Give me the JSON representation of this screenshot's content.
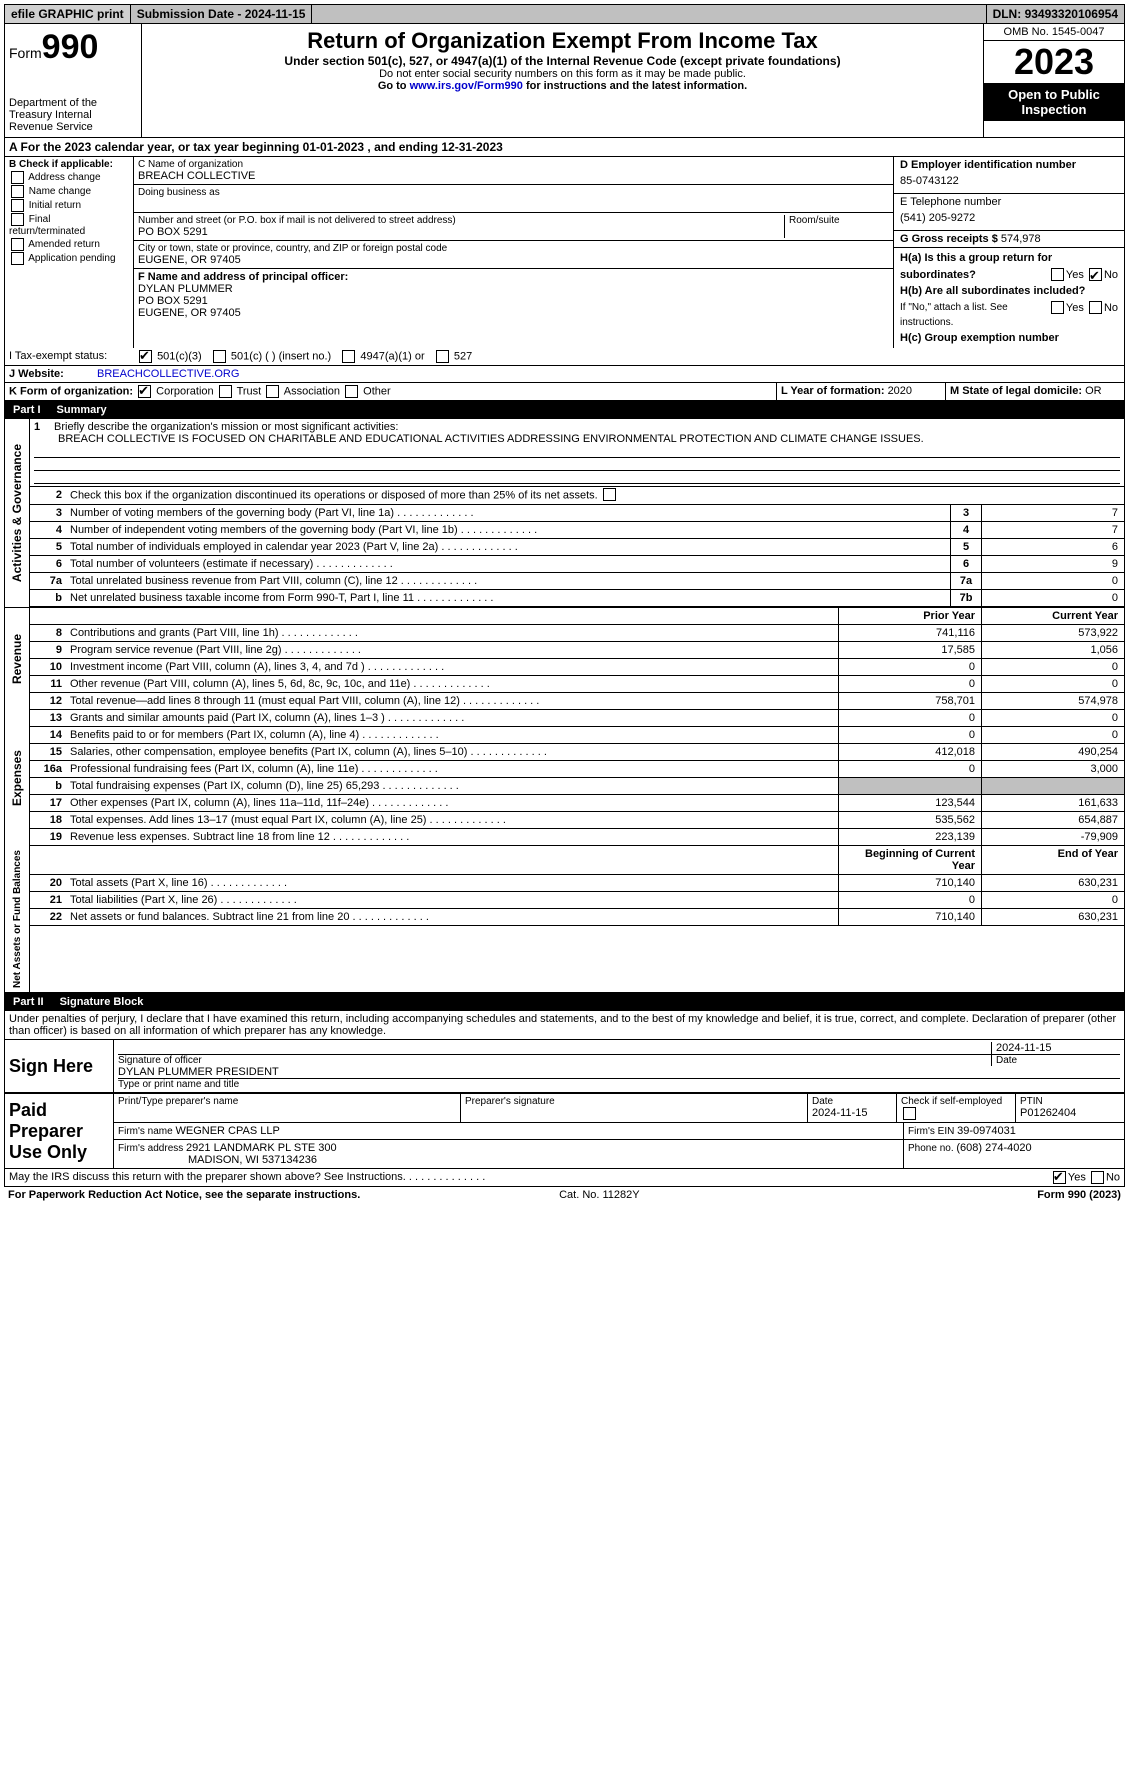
{
  "topbar": {
    "efile": "efile GRAPHIC print",
    "subdate_label": "Submission Date - ",
    "subdate": "2024-11-15",
    "dln_label": "DLN: ",
    "dln": "93493320106954"
  },
  "header": {
    "form_label": "Form",
    "form_num": "990",
    "dept": "Department of the Treasury\nInternal Revenue Service",
    "title": "Return of Organization Exempt From Income Tax",
    "sub": "Under section 501(c), 527, or 4947(a)(1) of the Internal Revenue Code (except private foundations)",
    "ssn": "Do not enter social security numbers on this form as it may be made public.",
    "goto_pre": "Go to ",
    "goto_link": "www.irs.gov/Form990",
    "goto_post": " for instructions and the latest information.",
    "omb": "OMB No. 1545-0047",
    "year": "2023",
    "opi": "Open to Public Inspection"
  },
  "lineA": {
    "pre": "A For the 2023 calendar year, or tax year beginning ",
    "begin": "01-01-2023",
    "mid": " , and ending ",
    "end": "12-31-2023"
  },
  "boxB": {
    "label": "B Check if applicable:",
    "items": [
      "Address change",
      "Name change",
      "Initial return",
      "Final return/terminated",
      "Amended return",
      "Application pending"
    ]
  },
  "boxC": {
    "name_label": "C Name of organization",
    "name": "BREACH COLLECTIVE",
    "dba_label": "Doing business as",
    "street_label": "Number and street (or P.O. box if mail is not delivered to street address)",
    "room_label": "Room/suite",
    "street": "PO BOX 5291",
    "city_label": "City or town, state or province, country, and ZIP or foreign postal code",
    "city": "EUGENE, OR  97405"
  },
  "boxD": {
    "label": "D Employer identification number",
    "val": "85-0743122"
  },
  "boxE": {
    "label": "E Telephone number",
    "val": "(541) 205-9272"
  },
  "boxG": {
    "label": "G Gross receipts $ ",
    "val": "574,978"
  },
  "boxF": {
    "label": "F  Name and address of principal officer:",
    "name": "DYLAN PLUMMER",
    "street": "PO BOX 5291",
    "city": "EUGENE, OR  97405"
  },
  "boxH": {
    "a": "H(a)  Is this a group return for subordinates?",
    "b": "H(b)  Are all subordinates included?",
    "b_note": "If \"No,\" attach a list. See instructions.",
    "c": "H(c)  Group exemption number "
  },
  "rowI": {
    "label": "I  Tax-exempt status:",
    "o1": "501(c)(3)",
    "o2": "501(c) (  ) (insert no.)",
    "o3": "4947(a)(1) or",
    "o4": "527"
  },
  "rowJ": {
    "label": "J  Website: ",
    "val": "BREACHCOLLECTIVE.ORG"
  },
  "rowK": {
    "label": "K Form of organization:",
    "o1": "Corporation",
    "o2": "Trust",
    "o3": "Association",
    "o4": "Other"
  },
  "rowL": {
    "label": "L Year of formation: ",
    "val": "2020"
  },
  "rowM": {
    "label": "M State of legal domicile: ",
    "val": "OR"
  },
  "part1": {
    "num": "Part I",
    "title": "Summary"
  },
  "summary": {
    "l1_label": "Briefly describe the organization's mission or most significant activities:",
    "l1_text": "BREACH COLLECTIVE IS FOCUSED ON CHARITABLE AND EDUCATIONAL ACTIVITIES ADDRESSING ENVIRONMENTAL PROTECTION AND CLIMATE CHANGE ISSUES.",
    "l2": "Check this box       if the organization discontinued its operations or disposed of more than 25% of its net assets.",
    "lines_gov": [
      {
        "n": "3",
        "t": "Number of voting members of the governing body (Part VI, line 1a)",
        "box": "3",
        "v": "7"
      },
      {
        "n": "4",
        "t": "Number of independent voting members of the governing body (Part VI, line 1b)",
        "box": "4",
        "v": "7"
      },
      {
        "n": "5",
        "t": "Total number of individuals employed in calendar year 2023 (Part V, line 2a)",
        "box": "5",
        "v": "6"
      },
      {
        "n": "6",
        "t": "Total number of volunteers (estimate if necessary)",
        "box": "6",
        "v": "9"
      },
      {
        "n": "7a",
        "t": "Total unrelated business revenue from Part VIII, column (C), line 12",
        "box": "7a",
        "v": "0"
      },
      {
        "n": "b",
        "t": "Net unrelated business taxable income from Form 990-T, Part I, line 11",
        "box": "7b",
        "v": "0"
      }
    ],
    "col_prior": "Prior Year",
    "col_curr": "Current Year",
    "revenue": [
      {
        "n": "8",
        "t": "Contributions and grants (Part VIII, line 1h)",
        "p": "741,116",
        "c": "573,922"
      },
      {
        "n": "9",
        "t": "Program service revenue (Part VIII, line 2g)",
        "p": "17,585",
        "c": "1,056"
      },
      {
        "n": "10",
        "t": "Investment income (Part VIII, column (A), lines 3, 4, and 7d )",
        "p": "0",
        "c": "0"
      },
      {
        "n": "11",
        "t": "Other revenue (Part VIII, column (A), lines 5, 6d, 8c, 9c, 10c, and 11e)",
        "p": "0",
        "c": "0"
      },
      {
        "n": "12",
        "t": "Total revenue—add lines 8 through 11 (must equal Part VIII, column (A), line 12)",
        "p": "758,701",
        "c": "574,978"
      }
    ],
    "expenses": [
      {
        "n": "13",
        "t": "Grants and similar amounts paid (Part IX, column (A), lines 1–3 )",
        "p": "0",
        "c": "0"
      },
      {
        "n": "14",
        "t": "Benefits paid to or for members (Part IX, column (A), line 4)",
        "p": "0",
        "c": "0"
      },
      {
        "n": "15",
        "t": "Salaries, other compensation, employee benefits (Part IX, column (A), lines 5–10)",
        "p": "412,018",
        "c": "490,254"
      },
      {
        "n": "16a",
        "t": "Professional fundraising fees (Part IX, column (A), line 11e)",
        "p": "0",
        "c": "3,000"
      },
      {
        "n": "b",
        "t": "Total fundraising expenses (Part IX, column (D), line 25) 65,293",
        "p": "shade",
        "c": "shade"
      },
      {
        "n": "17",
        "t": "Other expenses (Part IX, column (A), lines 11a–11d, 11f–24e)",
        "p": "123,544",
        "c": "161,633"
      },
      {
        "n": "18",
        "t": "Total expenses. Add lines 13–17 (must equal Part IX, column (A), line 25)",
        "p": "535,562",
        "c": "654,887"
      },
      {
        "n": "19",
        "t": "Revenue less expenses. Subtract line 18 from line 12",
        "p": "223,139",
        "c": "-79,909"
      }
    ],
    "col_begin": "Beginning of Current Year",
    "col_end": "End of Year",
    "netassets": [
      {
        "n": "20",
        "t": "Total assets (Part X, line 16)",
        "p": "710,140",
        "c": "630,231"
      },
      {
        "n": "21",
        "t": "Total liabilities (Part X, line 26)",
        "p": "0",
        "c": "0"
      },
      {
        "n": "22",
        "t": "Net assets or fund balances. Subtract line 21 from line 20",
        "p": "710,140",
        "c": "630,231"
      }
    ],
    "vtab_gov": "Activities & Governance",
    "vtab_rev": "Revenue",
    "vtab_exp": "Expenses",
    "vtab_net": "Net Assets or Fund Balances"
  },
  "part2": {
    "num": "Part II",
    "title": "Signature Block"
  },
  "perjury": "Under penalties of perjury, I declare that I have examined this return, including accompanying schedules and statements, and to the best of my knowledge and belief, it is true, correct, and complete. Declaration of preparer (other than officer) is based on all information of which preparer has any knowledge.",
  "sign": {
    "here": "Sign Here",
    "sig_label": "Signature of officer",
    "date_label": "Date",
    "officer": "DYLAN PLUMMER  PRESIDENT",
    "type_label": "Type or print name and title",
    "date": "2024-11-15"
  },
  "paid": {
    "label": "Paid Preparer Use Only",
    "name_hdr": "Print/Type preparer's name",
    "sig_hdr": "Preparer's signature",
    "date_hdr": "Date",
    "date": "2024-11-15",
    "check_label": "Check       if self-employed",
    "ptin_label": "PTIN",
    "ptin": "P01262404",
    "firm_name_label": "Firm's name   ",
    "firm_name": "WEGNER CPAS LLP",
    "firm_ein_label": "Firm's EIN  ",
    "firm_ein": "39-0974031",
    "firm_addr_label": "Firm's address ",
    "firm_addr": "2921 LANDMARK PL STE 300",
    "firm_city": "MADISON, WI  537134236",
    "phone_label": "Phone no. ",
    "phone": "(608) 274-4020"
  },
  "discuss": "May the IRS discuss this return with the preparer shown above? See Instructions.",
  "footer": {
    "left": "For Paperwork Reduction Act Notice, see the separate instructions.",
    "mid": "Cat. No. 11282Y",
    "right": "Form 990 (2023)"
  },
  "yesno": {
    "yes": "Yes",
    "no": "No"
  }
}
